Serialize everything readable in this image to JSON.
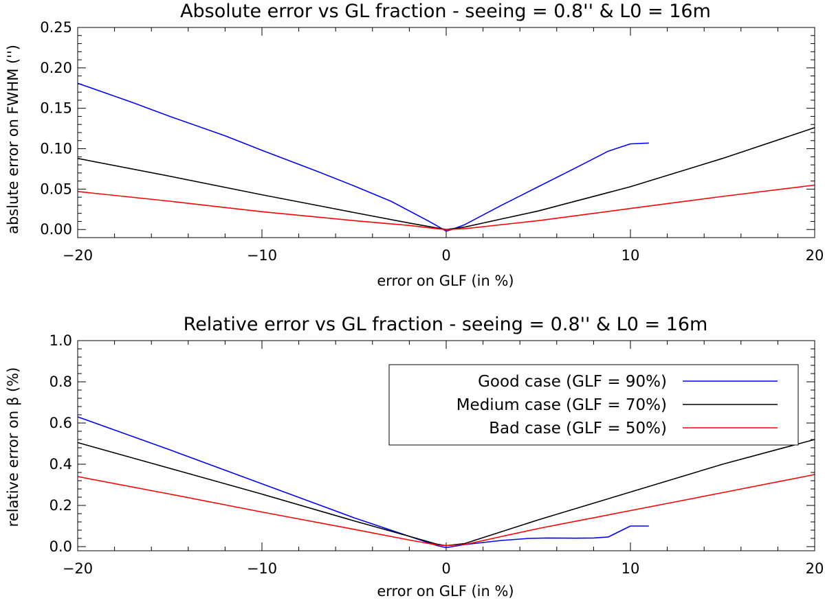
{
  "chart_data": [
    {
      "type": "line",
      "title": "Absolute error vs GL fraction - seeing = 0.8'' & L0 = 16m",
      "xlabel": "error on GLF (in %)",
      "ylabel": "abslute error on FWHM ('')",
      "xlim": [
        -20,
        20
      ],
      "ylim": [
        -0.01,
        0.25
      ],
      "xticks": [
        -20,
        -10,
        0,
        10,
        20
      ],
      "xtick_labels": [
        "−20",
        "−10",
        "0",
        "10",
        "20"
      ],
      "yticks": [
        0.0,
        0.05,
        0.1,
        0.15,
        0.2,
        0.25
      ],
      "ytick_labels": [
        "0.00",
        "0.05",
        "0.10",
        "0.15",
        "0.20",
        "0.25"
      ],
      "series": [
        {
          "name": "Good case (GLF = 90%)",
          "color": "#0000ff",
          "x": [
            -20,
            -17,
            -15,
            -12,
            -10,
            -7,
            -5,
            -3,
            -1,
            -0.3,
            0,
            0.3,
            1,
            3,
            5,
            7,
            8.8,
            10,
            11
          ],
          "y": [
            0.181,
            0.157,
            0.14,
            0.116,
            0.098,
            0.072,
            0.054,
            0.035,
            0.011,
            0.002,
            -0.002,
            0.0,
            0.006,
            0.03,
            0.053,
            0.076,
            0.097,
            0.106,
            0.107
          ]
        },
        {
          "name": "Medium case (GLF = 70%)",
          "color": "#000000",
          "x": [
            -20,
            -15,
            -10,
            -5,
            -2,
            -0.5,
            0,
            1,
            3,
            5,
            10,
            15,
            20
          ],
          "y": [
            0.088,
            0.066,
            0.043,
            0.021,
            0.008,
            0.002,
            0.0,
            0.003,
            0.013,
            0.023,
            0.053,
            0.088,
            0.126
          ]
        },
        {
          "name": "Bad case (GLF = 50%)",
          "color": "#ff0000",
          "x": [
            -20,
            -15,
            -10,
            -5,
            -2,
            -0.5,
            0,
            1,
            5,
            10,
            15,
            20
          ],
          "y": [
            0.047,
            0.035,
            0.022,
            0.011,
            0.005,
            0.001,
            0.0,
            0.001,
            0.011,
            0.026,
            0.041,
            0.055
          ]
        }
      ]
    },
    {
      "type": "line",
      "title": "Relative error vs GL fraction - seeing = 0.8'' & L0 = 16m",
      "xlabel": "error on GLF (in %)",
      "ylabel": "relative error on β (%)",
      "xlim": [
        -20,
        20
      ],
      "ylim": [
        -0.02,
        1.0
      ],
      "xticks": [
        -20,
        -10,
        0,
        10,
        20
      ],
      "xtick_labels": [
        "−20",
        "−10",
        "0",
        "10",
        "20"
      ],
      "yticks": [
        0.0,
        0.2,
        0.4,
        0.6,
        0.8,
        1.0
      ],
      "ytick_labels": [
        "0.0",
        "0.2",
        "0.4",
        "0.6",
        "0.8",
        "1.0"
      ],
      "legend": {
        "position": "upper-right",
        "entries": [
          "Good case (GLF = 90%)",
          "Medium case (GLF = 70%)",
          "Bad case (GLF = 50%)"
        ]
      },
      "series": [
        {
          "name": "Good case (GLF = 90%)",
          "color": "#0000ff",
          "x": [
            -20,
            -15,
            -10,
            -5,
            -2,
            -0.5,
            0,
            1,
            3,
            4.5,
            5.5,
            7,
            8,
            8.8,
            10,
            11
          ],
          "y": [
            0.63,
            0.47,
            0.305,
            0.14,
            0.05,
            0.005,
            -0.005,
            0.01,
            0.03,
            0.04,
            0.042,
            0.041,
            0.042,
            0.047,
            0.1,
            0.1
          ]
        },
        {
          "name": "Medium case (GLF = 70%)",
          "color": "#000000",
          "x": [
            -20,
            -15,
            -10,
            -5,
            -2,
            -0.5,
            0,
            1,
            5,
            10,
            15,
            20
          ],
          "y": [
            0.505,
            0.38,
            0.255,
            0.125,
            0.05,
            0.012,
            0.005,
            0.015,
            0.13,
            0.265,
            0.4,
            0.52
          ]
        },
        {
          "name": "Bad case (GLF = 50%)",
          "color": "#ff0000",
          "x": [
            -20,
            -15,
            -10,
            -5,
            -2,
            -0.5,
            0,
            1,
            5,
            10,
            15,
            20
          ],
          "y": [
            0.34,
            0.255,
            0.168,
            0.084,
            0.032,
            0.008,
            0.005,
            0.01,
            0.088,
            0.175,
            0.262,
            0.35
          ]
        }
      ]
    }
  ]
}
